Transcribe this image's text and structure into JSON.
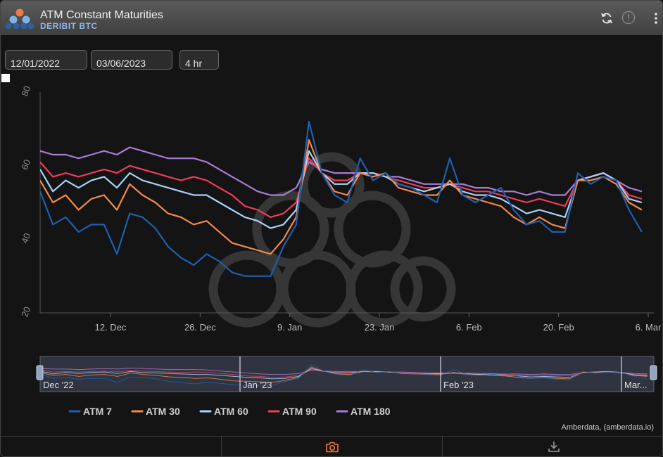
{
  "header": {
    "title": "ATM Constant Maturities",
    "exchange": "DERIBIT",
    "asset": "BTC"
  },
  "controls": {
    "start_date": "12/01/2022",
    "end_date": "03/06/2023",
    "interval": "4 hr"
  },
  "navigator": {
    "labels": [
      "Dec '22",
      "Jan '23",
      "Feb '23",
      "Mar..."
    ]
  },
  "credit": "Amberdata, (amberdata.io)",
  "colors": {
    "ATM 7": "#1f5fb0",
    "ATM 30": "#f5894a",
    "ATM 60": "#a9d3f8",
    "ATM 90": "#f03c5a",
    "ATM 180": "#a77dd6"
  },
  "icons": [
    "logo-icon",
    "refresh-icon",
    "info-icon",
    "more-icon",
    "camera-icon",
    "download-icon"
  ],
  "chart_data": {
    "type": "line",
    "ylim": [
      20,
      80
    ],
    "yticks": [
      20,
      40,
      60,
      80
    ],
    "xlim": [
      "2022-12-01",
      "2023-03-06"
    ],
    "xticks": [
      {
        "date": "2022-12-12",
        "label": "12. Dec"
      },
      {
        "date": "2022-12-26",
        "label": "26. Dec"
      },
      {
        "date": "2023-01-09",
        "label": "9. Jan"
      },
      {
        "date": "2023-01-23",
        "label": "23. Jan"
      },
      {
        "date": "2023-02-06",
        "label": "6. Feb"
      },
      {
        "date": "2023-02-20",
        "label": "20. Feb"
      },
      {
        "date": "2023-03-06",
        "label": "6. Mar"
      }
    ],
    "legend_position": "bottom",
    "x": [
      "2022-12-01",
      "2022-12-03",
      "2022-12-05",
      "2022-12-07",
      "2022-12-09",
      "2022-12-11",
      "2022-12-13",
      "2022-12-15",
      "2022-12-17",
      "2022-12-19",
      "2022-12-21",
      "2022-12-23",
      "2022-12-25",
      "2022-12-27",
      "2022-12-29",
      "2022-12-31",
      "2023-01-02",
      "2023-01-04",
      "2023-01-06",
      "2023-01-08",
      "2023-01-10",
      "2023-01-12",
      "2023-01-14",
      "2023-01-16",
      "2023-01-18",
      "2023-01-20",
      "2023-01-22",
      "2023-01-24",
      "2023-01-26",
      "2023-01-28",
      "2023-01-30",
      "2023-02-01",
      "2023-02-03",
      "2023-02-05",
      "2023-02-07",
      "2023-02-09",
      "2023-02-11",
      "2023-02-13",
      "2023-02-15",
      "2023-02-17",
      "2023-02-19",
      "2023-02-21",
      "2023-02-23",
      "2023-02-25",
      "2023-02-27",
      "2023-03-01",
      "2023-03-03",
      "2023-03-05"
    ],
    "series": [
      {
        "name": "ATM 7",
        "values": [
          53,
          44,
          46,
          42,
          44,
          44,
          36,
          47,
          46,
          43,
          38,
          35,
          33,
          36,
          34,
          31,
          30,
          30,
          30,
          38,
          44,
          72,
          58,
          52,
          50,
          62,
          56,
          58,
          55,
          54,
          52,
          50,
          62,
          52,
          50,
          52,
          54,
          48,
          44,
          45,
          42,
          42,
          58,
          55,
          57,
          56,
          48,
          42
        ]
      },
      {
        "name": "ATM 30",
        "values": [
          56,
          50,
          52,
          48,
          51,
          52,
          48,
          55,
          52,
          50,
          47,
          46,
          44,
          45,
          42,
          39,
          38,
          37,
          36,
          40,
          46,
          67,
          58,
          53,
          52,
          58,
          57,
          58,
          54,
          53,
          52,
          52,
          56,
          52,
          51,
          50,
          49,
          46,
          44,
          46,
          44,
          43,
          56,
          56,
          57,
          55,
          50,
          48
        ]
      },
      {
        "name": "ATM 60",
        "values": [
          59,
          53,
          56,
          54,
          56,
          57,
          54,
          58,
          56,
          55,
          54,
          53,
          52,
          52,
          50,
          48,
          46,
          45,
          43,
          44,
          48,
          64,
          58,
          55,
          55,
          58,
          58,
          57,
          55,
          54,
          53,
          54,
          55,
          53,
          52,
          52,
          51,
          49,
          47,
          48,
          47,
          46,
          56,
          57,
          58,
          56,
          51,
          50
        ]
      },
      {
        "name": "ATM 90",
        "values": [
          61,
          57,
          58,
          57,
          58,
          59,
          58,
          60,
          59,
          58,
          57,
          56,
          57,
          56,
          54,
          52,
          49,
          48,
          46,
          47,
          50,
          62,
          58,
          56,
          56,
          58,
          58,
          57,
          56,
          55,
          54,
          54,
          55,
          54,
          53,
          53,
          52,
          51,
          50,
          51,
          50,
          49,
          56,
          57,
          58,
          56,
          52,
          51
        ]
      },
      {
        "name": "ATM 180",
        "values": [
          64,
          63,
          63,
          62,
          63,
          64,
          63,
          65,
          64,
          63,
          62,
          62,
          62,
          61,
          59,
          57,
          55,
          53,
          52,
          52,
          54,
          61,
          59,
          58,
          58,
          58,
          58,
          57,
          57,
          56,
          55,
          55,
          55,
          55,
          54,
          54,
          53,
          53,
          52,
          53,
          52,
          52,
          56,
          57,
          58,
          56,
          54,
          53
        ]
      }
    ]
  }
}
